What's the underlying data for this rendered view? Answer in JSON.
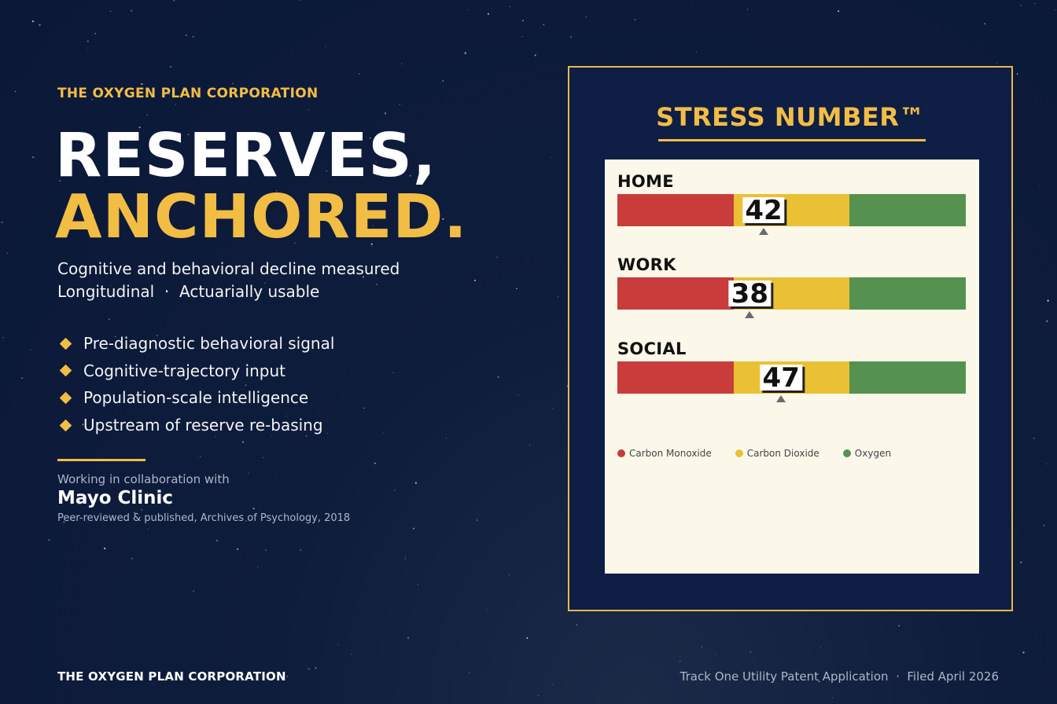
{
  "brand": {
    "eyebrow": "THE OXYGEN PLAN CORPORATION",
    "accent_color": "#f2bd45",
    "background_color": "#0b1838"
  },
  "hero": {
    "headline_line1": "RESERVES,",
    "headline_line2": "ANCHORED.",
    "subline1": "Cognitive and behavioral decline measured",
    "subline2": "Longitudinal  ·  Actuarially usable"
  },
  "bullets": [
    "Pre-diagnostic behavioral signal",
    "Cognitive-trajectory input",
    "Population-scale intelligence",
    "Upstream of reserve re-basing"
  ],
  "collaboration": {
    "intro": "Working in collaboration with",
    "partner": "Mayo Clinic",
    "note": "Peer-reviewed & published, Archives of Psychology, 2018"
  },
  "footer": {
    "left": "THE OXYGEN PLAN CORPORATION",
    "right": "Track One Utility Patent Application  ·  Filed April 2026"
  },
  "panel": {
    "title": "STRESS NUMBER™"
  },
  "chart_data": {
    "type": "bar",
    "scale": [
      0,
      100
    ],
    "zones": [
      {
        "name": "Carbon Monoxide",
        "range": [
          0,
          33.3
        ],
        "color": "#c83c3c"
      },
      {
        "name": "Carbon Dioxide",
        "range": [
          33.3,
          66.7
        ],
        "color": "#eac134"
      },
      {
        "name": "Oxygen",
        "range": [
          66.7,
          100
        ],
        "color": "#55914f"
      }
    ],
    "categories": [
      "HOME",
      "WORK",
      "SOCIAL"
    ],
    "values": [
      42,
      38,
      47
    ],
    "legend": [
      "Carbon Monoxide",
      "Carbon Dioxide",
      "Oxygen"
    ],
    "legend_position": "bottom-left"
  }
}
